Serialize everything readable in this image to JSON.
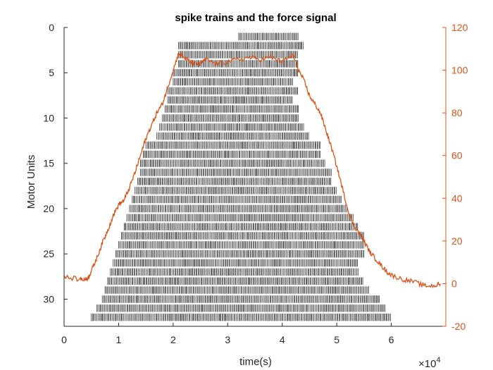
{
  "chart_data": {
    "type": "raster_with_line",
    "title": "spike trains and the force signal",
    "xlabel": "time(s)",
    "ylabel": "Motor Units",
    "x_exponent_label": "×10",
    "x_exponent_power": "4",
    "xlim": [
      0,
      70000
    ],
    "x_ticks": [
      0,
      10000,
      20000,
      30000,
      40000,
      50000,
      60000
    ],
    "x_tick_labels": [
      "0",
      "1",
      "2",
      "3",
      "4",
      "5",
      "6"
    ],
    "ylim_left": [
      0,
      33
    ],
    "left_reversed": true,
    "y_ticks_left": [
      0,
      5,
      10,
      15,
      20,
      25,
      30
    ],
    "ylim_right": [
      -20,
      120
    ],
    "y_ticks_right": [
      -20,
      0,
      20,
      40,
      60,
      80,
      100,
      120
    ],
    "colors": {
      "spikes": "#262626",
      "force": "#D95319",
      "axis": "#262626"
    },
    "motor_units": [
      {
        "unit": 1,
        "start": 32000,
        "end": 43000
      },
      {
        "unit": 2,
        "start": 21000,
        "end": 44000
      },
      {
        "unit": 3,
        "start": 21000,
        "end": 43000
      },
      {
        "unit": 4,
        "start": 21000,
        "end": 43000
      },
      {
        "unit": 5,
        "start": 20000,
        "end": 43000
      },
      {
        "unit": 6,
        "start": 20000,
        "end": 42000
      },
      {
        "unit": 7,
        "start": 19000,
        "end": 43000
      },
      {
        "unit": 8,
        "start": 19000,
        "end": 42000
      },
      {
        "unit": 9,
        "start": 18500,
        "end": 43000
      },
      {
        "unit": 10,
        "start": 18000,
        "end": 43000
      },
      {
        "unit": 11,
        "start": 17500,
        "end": 44000
      },
      {
        "unit": 12,
        "start": 17000,
        "end": 45000
      },
      {
        "unit": 13,
        "start": 15000,
        "end": 47000
      },
      {
        "unit": 14,
        "start": 14500,
        "end": 47000
      },
      {
        "unit": 15,
        "start": 14000,
        "end": 48000
      },
      {
        "unit": 16,
        "start": 14000,
        "end": 49000
      },
      {
        "unit": 17,
        "start": 13500,
        "end": 49000
      },
      {
        "unit": 18,
        "start": 13000,
        "end": 50000
      },
      {
        "unit": 19,
        "start": 12500,
        "end": 51000
      },
      {
        "unit": 20,
        "start": 12000,
        "end": 52000
      },
      {
        "unit": 21,
        "start": 11500,
        "end": 53000
      },
      {
        "unit": 22,
        "start": 11000,
        "end": 54000
      },
      {
        "unit": 23,
        "start": 10500,
        "end": 55000
      },
      {
        "unit": 24,
        "start": 10000,
        "end": 55000
      },
      {
        "unit": 25,
        "start": 9500,
        "end": 55000
      },
      {
        "unit": 26,
        "start": 9000,
        "end": 54000
      },
      {
        "unit": 27,
        "start": 8500,
        "end": 54000
      },
      {
        "unit": 28,
        "start": 8000,
        "end": 55000
      },
      {
        "unit": 29,
        "start": 7500,
        "end": 56000
      },
      {
        "unit": 30,
        "start": 7000,
        "end": 58000
      },
      {
        "unit": 31,
        "start": 6000,
        "end": 59000
      },
      {
        "unit": 32,
        "start": 5000,
        "end": 60000
      }
    ],
    "force": {
      "x": [
        0,
        3000,
        4000,
        4500,
        5000,
        6000,
        7000,
        8000,
        9000,
        10000,
        11000,
        12000,
        13000,
        14000,
        15000,
        16000,
        17000,
        18000,
        19000,
        20000,
        21000,
        22000,
        23000,
        24000,
        25000,
        26000,
        28000,
        30000,
        32000,
        34000,
        36000,
        38000,
        40000,
        42000,
        43000,
        44000,
        45000,
        46000,
        47000,
        48000,
        49000,
        50000,
        51000,
        52000,
        53000,
        54000,
        55000,
        56000,
        57000,
        58000,
        59000,
        60000,
        62000,
        64000,
        66000,
        68000,
        69000
      ],
      "y": [
        3,
        2,
        2,
        3,
        6,
        12,
        19,
        25,
        32,
        37,
        39,
        45,
        52,
        60,
        68,
        74,
        80,
        84,
        92,
        100,
        108,
        106,
        104,
        103,
        103,
        105,
        103,
        104,
        105,
        106,
        105,
        106,
        104,
        107,
        100,
        95,
        88,
        84,
        80,
        72,
        64,
        55,
        45,
        35,
        28,
        24,
        20,
        15,
        12,
        9,
        6,
        4,
        2,
        1,
        -1,
        -1,
        0
      ]
    }
  }
}
